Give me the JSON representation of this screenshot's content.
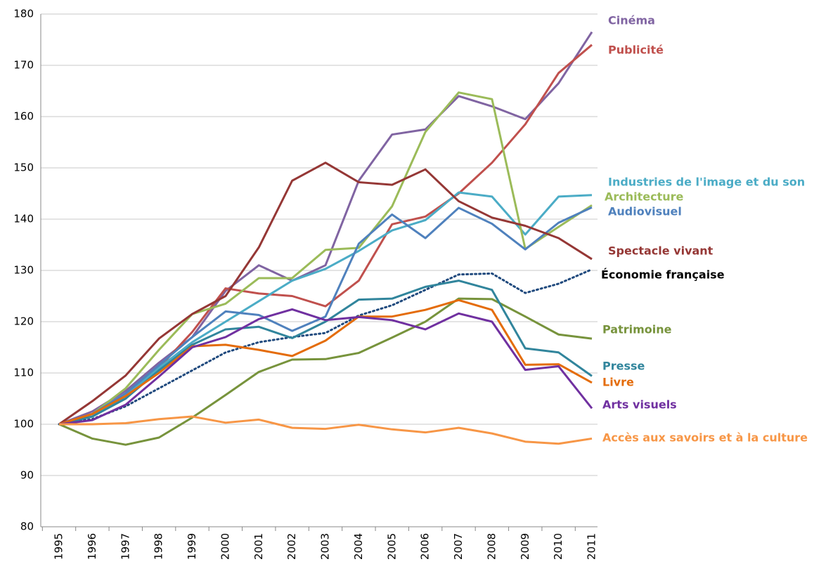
{
  "chart_data": {
    "type": "line",
    "categories": [
      "1995",
      "1996",
      "1997",
      "1998",
      "1999",
      "2000",
      "2001",
      "2002",
      "2003",
      "2004",
      "2005",
      "2006",
      "2007",
      "2008",
      "2009",
      "2010",
      "2011"
    ],
    "ylim": [
      80,
      180
    ],
    "yticks": [
      80,
      90,
      100,
      110,
      120,
      130,
      140,
      150,
      160,
      170,
      180
    ],
    "grid": true,
    "series": [
      {
        "name": "Cinéma",
        "color": "#8064a2",
        "values": [
          100,
          102.5,
          106.5,
          112,
          117,
          126,
          131,
          128,
          131,
          147.5,
          156.5,
          157.5,
          164,
          162,
          159.5,
          166.5,
          176.5
        ]
      },
      {
        "name": "Publicité",
        "color": "#c0504d",
        "values": [
          100,
          102,
          105,
          111,
          118,
          126.5,
          125.5,
          125,
          123,
          128,
          139,
          140.5,
          145,
          151,
          158.5,
          168.5,
          174
        ]
      },
      {
        "name": "Industries de l'image et du son",
        "color": "#4bacc6",
        "values": [
          100,
          101.5,
          105.5,
          111,
          116,
          120,
          124,
          128,
          130.3,
          133.8,
          137.8,
          139.8,
          145.2,
          144.4,
          137,
          144.4,
          144.7
        ]
      },
      {
        "name": "Architecture",
        "color": "#9bbb59",
        "values": [
          100,
          102,
          107,
          114.5,
          121.5,
          123.5,
          128.5,
          128.5,
          134,
          134.4,
          142.5,
          157,
          164.7,
          163.4,
          134.2,
          138.5,
          142.7
        ]
      },
      {
        "name": "Audiovisuel",
        "color": "#4f81bd",
        "values": [
          100,
          102,
          106,
          111.5,
          117,
          122,
          121.3,
          118.2,
          121,
          135.2,
          140.9,
          136.3,
          142.2,
          139.1,
          134.1,
          139.3,
          142.3
        ]
      },
      {
        "name": "Spectacle vivant",
        "color": "#953735",
        "values": [
          100,
          104.5,
          109.5,
          116.7,
          121.5,
          125,
          134.5,
          147.5,
          151,
          147.2,
          146.7,
          149.7,
          143.5,
          140.3,
          138.7,
          136.3,
          132.2
        ]
      },
      {
        "name": "Économie française",
        "color": "#1f497d",
        "label_color": "#000000",
        "dashed": true,
        "values": [
          100,
          101,
          103.5,
          107,
          110.5,
          114,
          116,
          117,
          117.8,
          121.2,
          123.2,
          126.2,
          129.2,
          129.4,
          125.6,
          127.4,
          130.2
        ]
      },
      {
        "name": "Patrimoine",
        "color": "#77933c",
        "values": [
          100,
          97.2,
          96,
          97.4,
          101.3,
          105.7,
          110.2,
          112.6,
          112.7,
          113.9,
          116.9,
          120,
          124.5,
          124.4,
          121,
          117.5,
          116.7
        ]
      },
      {
        "name": "Presse",
        "color": "#31859c",
        "values": [
          100,
          101.5,
          105,
          110.5,
          115.5,
          118.5,
          119,
          116.8,
          120,
          124.3,
          124.5,
          126.8,
          128,
          126.2,
          114.8,
          114,
          109.4
        ]
      },
      {
        "name": "Livre",
        "color": "#e46c0a",
        "values": [
          100,
          102,
          105.5,
          110,
          115.2,
          115.5,
          114.5,
          113.3,
          116.3,
          121,
          121,
          122.3,
          124.2,
          122.3,
          111.6,
          111.7,
          108.1
        ]
      },
      {
        "name": "Arts visuels",
        "color": "#7030a0",
        "values": [
          100,
          100.8,
          103.8,
          109.3,
          115,
          117,
          120.5,
          122.4,
          120.3,
          120.9,
          120.3,
          118.5,
          121.6,
          120,
          110.6,
          111.3,
          103.1
        ]
      },
      {
        "name": "Accès aux savoirs et à la culture",
        "color": "#f79646",
        "values": [
          100,
          100,
          100.2,
          101,
          101.5,
          100.3,
          100.9,
          99.3,
          99.1,
          99.9,
          99,
          98.4,
          99.3,
          98.2,
          96.6,
          96.2,
          97.2
        ]
      }
    ]
  }
}
